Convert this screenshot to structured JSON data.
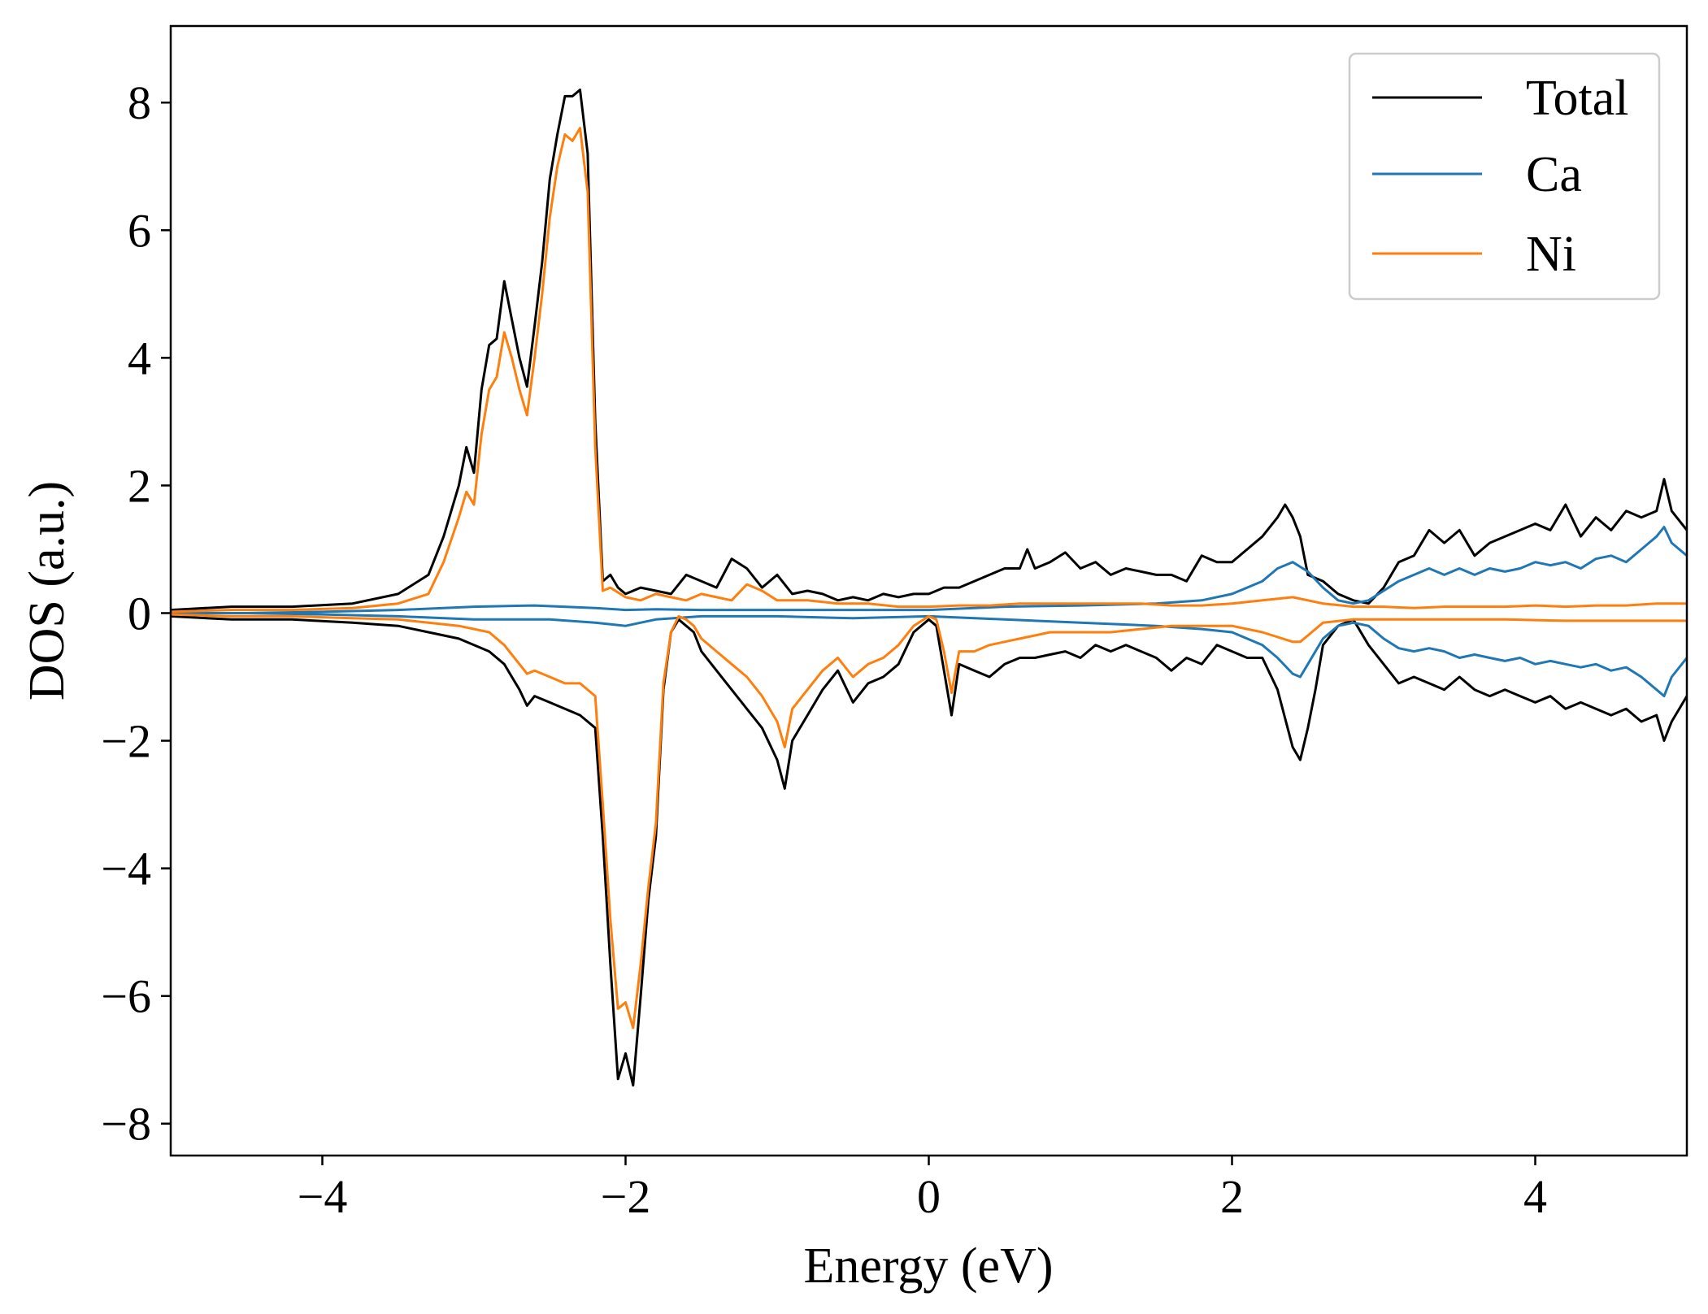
{
  "chart_data": {
    "type": "line",
    "title": "",
    "xlabel": "Energy (eV)",
    "ylabel": "DOS (a.u.)",
    "xlim": [
      -5,
      5
    ],
    "ylim": [
      -8.5,
      9.2
    ],
    "xticks": [
      -4,
      -2,
      0,
      2,
      4
    ],
    "yticks": [
      -8,
      -6,
      -4,
      -2,
      0,
      2,
      4,
      6,
      8
    ],
    "xtick_labels": [
      "−4",
      "−2",
      "0",
      "2",
      "4"
    ],
    "ytick_labels": [
      "−8",
      "−6",
      "−4",
      "−2",
      "0",
      "2",
      "4",
      "6",
      "8"
    ],
    "grid": false,
    "legend_position": "top-right",
    "series": [
      {
        "name": "Total",
        "color": "#000000",
        "up": {
          "x": [
            -5,
            -4.6,
            -4.2,
            -3.8,
            -3.5,
            -3.3,
            -3.2,
            -3.1,
            -3.05,
            -3.0,
            -2.95,
            -2.9,
            -2.85,
            -2.8,
            -2.75,
            -2.7,
            -2.65,
            -2.6,
            -2.55,
            -2.5,
            -2.45,
            -2.4,
            -2.35,
            -2.3,
            -2.25,
            -2.2,
            -2.15,
            -2.1,
            -2.05,
            -2.0,
            -1.9,
            -1.8,
            -1.7,
            -1.6,
            -1.5,
            -1.4,
            -1.3,
            -1.2,
            -1.1,
            -1.0,
            -0.9,
            -0.8,
            -0.7,
            -0.6,
            -0.5,
            -0.4,
            -0.3,
            -0.2,
            -0.1,
            0.0,
            0.1,
            0.2,
            0.3,
            0.4,
            0.5,
            0.6,
            0.65,
            0.7,
            0.8,
            0.9,
            1.0,
            1.1,
            1.2,
            1.3,
            1.4,
            1.5,
            1.6,
            1.7,
            1.8,
            1.9,
            2.0,
            2.1,
            2.2,
            2.3,
            2.35,
            2.4,
            2.45,
            2.5,
            2.6,
            2.7,
            2.8,
            2.9,
            3.0,
            3.1,
            3.2,
            3.3,
            3.4,
            3.5,
            3.6,
            3.7,
            3.8,
            3.9,
            4.0,
            4.1,
            4.2,
            4.3,
            4.4,
            4.5,
            4.6,
            4.7,
            4.8,
            4.85,
            4.9,
            5.0
          ],
          "y": [
            0.05,
            0.1,
            0.1,
            0.15,
            0.3,
            0.6,
            1.2,
            2.0,
            2.6,
            2.2,
            3.5,
            4.2,
            4.3,
            5.2,
            4.6,
            4.0,
            3.55,
            4.5,
            5.5,
            6.8,
            7.5,
            8.1,
            8.1,
            8.2,
            7.2,
            3.0,
            0.5,
            0.6,
            0.4,
            0.3,
            0.4,
            0.35,
            0.3,
            0.6,
            0.5,
            0.4,
            0.85,
            0.7,
            0.4,
            0.6,
            0.3,
            0.35,
            0.3,
            0.2,
            0.25,
            0.2,
            0.3,
            0.25,
            0.3,
            0.3,
            0.4,
            0.4,
            0.5,
            0.6,
            0.7,
            0.7,
            1.0,
            0.7,
            0.8,
            0.95,
            0.7,
            0.8,
            0.6,
            0.7,
            0.65,
            0.6,
            0.6,
            0.5,
            0.9,
            0.8,
            0.8,
            1.0,
            1.2,
            1.5,
            1.7,
            1.5,
            1.2,
            0.6,
            0.5,
            0.3,
            0.2,
            0.15,
            0.4,
            0.8,
            0.9,
            1.3,
            1.1,
            1.3,
            0.9,
            1.1,
            1.2,
            1.3,
            1.4,
            1.3,
            1.7,
            1.2,
            1.5,
            1.3,
            1.6,
            1.5,
            1.6,
            2.1,
            1.6,
            1.3
          ]
        },
        "down": {
          "x": [
            -5,
            -4.6,
            -4.2,
            -3.8,
            -3.5,
            -3.3,
            -3.1,
            -2.9,
            -2.8,
            -2.7,
            -2.65,
            -2.6,
            -2.5,
            -2.4,
            -2.3,
            -2.2,
            -2.15,
            -2.1,
            -2.05,
            -2.0,
            -1.95,
            -1.9,
            -1.85,
            -1.8,
            -1.75,
            -1.7,
            -1.65,
            -1.6,
            -1.55,
            -1.5,
            -1.4,
            -1.3,
            -1.2,
            -1.1,
            -1.0,
            -0.95,
            -0.9,
            -0.8,
            -0.7,
            -0.6,
            -0.5,
            -0.4,
            -0.3,
            -0.2,
            -0.1,
            0.0,
            0.05,
            0.1,
            0.15,
            0.2,
            0.3,
            0.4,
            0.5,
            0.6,
            0.7,
            0.8,
            0.9,
            1.0,
            1.1,
            1.2,
            1.3,
            1.4,
            1.5,
            1.6,
            1.7,
            1.8,
            1.9,
            2.0,
            2.1,
            2.2,
            2.3,
            2.4,
            2.45,
            2.5,
            2.55,
            2.6,
            2.7,
            2.8,
            2.9,
            3.0,
            3.1,
            3.2,
            3.3,
            3.4,
            3.5,
            3.6,
            3.7,
            3.8,
            3.9,
            4.0,
            4.1,
            4.2,
            4.3,
            4.4,
            4.5,
            4.6,
            4.7,
            4.8,
            4.85,
            4.9,
            5.0
          ],
          "y": [
            -0.05,
            -0.1,
            -0.1,
            -0.15,
            -0.2,
            -0.3,
            -0.4,
            -0.6,
            -0.8,
            -1.2,
            -1.45,
            -1.3,
            -1.4,
            -1.5,
            -1.6,
            -1.8,
            -3.5,
            -5.5,
            -7.3,
            -6.9,
            -7.4,
            -6.0,
            -4.5,
            -3.5,
            -1.2,
            -0.3,
            -0.1,
            -0.2,
            -0.3,
            -0.6,
            -0.9,
            -1.2,
            -1.5,
            -1.8,
            -2.3,
            -2.75,
            -2.0,
            -1.6,
            -1.2,
            -0.9,
            -1.4,
            -1.1,
            -1.0,
            -0.8,
            -0.3,
            -0.1,
            -0.2,
            -0.9,
            -1.6,
            -0.8,
            -0.9,
            -1.0,
            -0.8,
            -0.7,
            -0.7,
            -0.65,
            -0.6,
            -0.7,
            -0.5,
            -0.6,
            -0.5,
            -0.6,
            -0.7,
            -0.9,
            -0.7,
            -0.8,
            -0.5,
            -0.6,
            -0.7,
            -0.7,
            -1.2,
            -2.1,
            -2.3,
            -1.8,
            -1.2,
            -0.5,
            -0.2,
            -0.1,
            -0.5,
            -0.8,
            -1.1,
            -1.0,
            -1.1,
            -1.2,
            -1.0,
            -1.2,
            -1.3,
            -1.2,
            -1.3,
            -1.4,
            -1.3,
            -1.5,
            -1.4,
            -1.5,
            -1.6,
            -1.5,
            -1.7,
            -1.6,
            -2.0,
            -1.7,
            -1.3
          ]
        }
      },
      {
        "name": "Ca",
        "color": "#1f77b4",
        "up": {
          "x": [
            -5,
            -4.5,
            -4.0,
            -3.5,
            -3.0,
            -2.6,
            -2.2,
            -2.0,
            -1.8,
            -1.5,
            -1.0,
            -0.5,
            0.0,
            0.5,
            1.0,
            1.5,
            1.8,
            2.0,
            2.2,
            2.3,
            2.4,
            2.5,
            2.6,
            2.7,
            2.8,
            2.9,
            3.0,
            3.1,
            3.2,
            3.3,
            3.4,
            3.5,
            3.6,
            3.7,
            3.8,
            3.9,
            4.0,
            4.1,
            4.2,
            4.3,
            4.4,
            4.5,
            4.6,
            4.7,
            4.8,
            4.85,
            4.9,
            5.0
          ],
          "y": [
            0.0,
            0.0,
            0.02,
            0.05,
            0.1,
            0.12,
            0.08,
            0.05,
            0.06,
            0.05,
            0.05,
            0.05,
            0.05,
            0.1,
            0.12,
            0.15,
            0.2,
            0.3,
            0.5,
            0.7,
            0.8,
            0.65,
            0.4,
            0.2,
            0.15,
            0.2,
            0.35,
            0.5,
            0.6,
            0.7,
            0.6,
            0.7,
            0.6,
            0.7,
            0.65,
            0.7,
            0.8,
            0.75,
            0.8,
            0.7,
            0.85,
            0.9,
            0.8,
            1.0,
            1.2,
            1.35,
            1.1,
            0.9
          ]
        },
        "down": {
          "x": [
            -5,
            -4.5,
            -4.0,
            -3.5,
            -3.0,
            -2.5,
            -2.2,
            -2.0,
            -1.8,
            -1.5,
            -1.0,
            -0.5,
            0.0,
            0.5,
            1.0,
            1.5,
            1.8,
            2.0,
            2.2,
            2.3,
            2.4,
            2.45,
            2.5,
            2.6,
            2.7,
            2.8,
            2.9,
            3.0,
            3.1,
            3.2,
            3.3,
            3.4,
            3.5,
            3.6,
            3.7,
            3.8,
            3.9,
            4.0,
            4.1,
            4.2,
            4.3,
            4.4,
            4.5,
            4.6,
            4.7,
            4.8,
            4.85,
            4.9,
            5.0
          ],
          "y": [
            0.0,
            0.0,
            -0.02,
            -0.05,
            -0.1,
            -0.1,
            -0.15,
            -0.2,
            -0.1,
            -0.05,
            -0.05,
            -0.08,
            -0.05,
            -0.1,
            -0.15,
            -0.2,
            -0.25,
            -0.3,
            -0.5,
            -0.7,
            -0.95,
            -1.0,
            -0.8,
            -0.4,
            -0.2,
            -0.15,
            -0.2,
            -0.4,
            -0.55,
            -0.6,
            -0.55,
            -0.6,
            -0.7,
            -0.65,
            -0.7,
            -0.75,
            -0.7,
            -0.8,
            -0.75,
            -0.8,
            -0.85,
            -0.8,
            -0.9,
            -0.85,
            -1.0,
            -1.2,
            -1.3,
            -1.0,
            -0.7
          ]
        }
      },
      {
        "name": "Ni",
        "color": "#ff7f0e",
        "up": {
          "x": [
            -5,
            -4.6,
            -4.2,
            -3.8,
            -3.5,
            -3.3,
            -3.2,
            -3.1,
            -3.05,
            -3.0,
            -2.95,
            -2.9,
            -2.85,
            -2.8,
            -2.75,
            -2.7,
            -2.65,
            -2.6,
            -2.55,
            -2.5,
            -2.45,
            -2.4,
            -2.35,
            -2.3,
            -2.25,
            -2.2,
            -2.15,
            -2.1,
            -2.0,
            -1.9,
            -1.8,
            -1.7,
            -1.6,
            -1.5,
            -1.4,
            -1.3,
            -1.2,
            -1.1,
            -1.0,
            -0.8,
            -0.6,
            -0.4,
            -0.2,
            0.0,
            0.2,
            0.4,
            0.6,
            0.8,
            1.0,
            1.2,
            1.4,
            1.6,
            1.8,
            2.0,
            2.2,
            2.4,
            2.6,
            2.8,
            3.0,
            3.2,
            3.4,
            3.6,
            3.8,
            4.0,
            4.2,
            4.4,
            4.6,
            4.8,
            5.0
          ],
          "y": [
            0.02,
            0.05,
            0.05,
            0.08,
            0.15,
            0.3,
            0.8,
            1.5,
            1.9,
            1.7,
            2.8,
            3.5,
            3.7,
            4.4,
            4.0,
            3.5,
            3.1,
            4.0,
            5.0,
            6.2,
            7.0,
            7.5,
            7.4,
            7.6,
            6.6,
            2.6,
            0.35,
            0.4,
            0.25,
            0.2,
            0.3,
            0.25,
            0.2,
            0.3,
            0.25,
            0.2,
            0.45,
            0.35,
            0.2,
            0.2,
            0.15,
            0.15,
            0.1,
            0.1,
            0.12,
            0.12,
            0.15,
            0.15,
            0.15,
            0.15,
            0.15,
            0.12,
            0.12,
            0.15,
            0.2,
            0.25,
            0.15,
            0.1,
            0.1,
            0.08,
            0.1,
            0.1,
            0.1,
            0.12,
            0.1,
            0.12,
            0.12,
            0.15,
            0.15
          ]
        },
        "down": {
          "x": [
            -5,
            -4.6,
            -4.2,
            -3.8,
            -3.5,
            -3.3,
            -3.1,
            -2.9,
            -2.8,
            -2.7,
            -2.65,
            -2.6,
            -2.5,
            -2.4,
            -2.3,
            -2.2,
            -2.15,
            -2.1,
            -2.05,
            -2.0,
            -1.95,
            -1.9,
            -1.85,
            -1.8,
            -1.75,
            -1.7,
            -1.65,
            -1.6,
            -1.55,
            -1.5,
            -1.4,
            -1.3,
            -1.2,
            -1.1,
            -1.0,
            -0.95,
            -0.9,
            -0.8,
            -0.7,
            -0.6,
            -0.5,
            -0.4,
            -0.3,
            -0.2,
            -0.1,
            0.0,
            0.05,
            0.1,
            0.15,
            0.2,
            0.3,
            0.4,
            0.5,
            0.6,
            0.7,
            0.8,
            0.9,
            1.0,
            1.2,
            1.4,
            1.6,
            1.8,
            2.0,
            2.2,
            2.4,
            2.45,
            2.5,
            2.6,
            2.8,
            3.0,
            3.4,
            3.8,
            4.2,
            4.6,
            5.0
          ],
          "y": [
            -0.02,
            -0.05,
            -0.05,
            -0.08,
            -0.1,
            -0.15,
            -0.2,
            -0.3,
            -0.5,
            -0.8,
            -0.95,
            -0.9,
            -1.0,
            -1.1,
            -1.1,
            -1.3,
            -3.0,
            -4.8,
            -6.2,
            -6.1,
            -6.5,
            -5.5,
            -4.3,
            -3.3,
            -1.1,
            -0.3,
            -0.05,
            -0.1,
            -0.2,
            -0.4,
            -0.6,
            -0.8,
            -1.0,
            -1.3,
            -1.7,
            -2.1,
            -1.5,
            -1.2,
            -0.9,
            -0.7,
            -1.0,
            -0.8,
            -0.7,
            -0.5,
            -0.2,
            -0.05,
            -0.1,
            -0.6,
            -1.25,
            -0.6,
            -0.6,
            -0.5,
            -0.45,
            -0.4,
            -0.35,
            -0.3,
            -0.3,
            -0.3,
            -0.3,
            -0.25,
            -0.2,
            -0.2,
            -0.2,
            -0.3,
            -0.45,
            -0.45,
            -0.35,
            -0.15,
            -0.1,
            -0.1,
            -0.1,
            -0.1,
            -0.12,
            -0.12,
            -0.12
          ]
        }
      }
    ]
  }
}
